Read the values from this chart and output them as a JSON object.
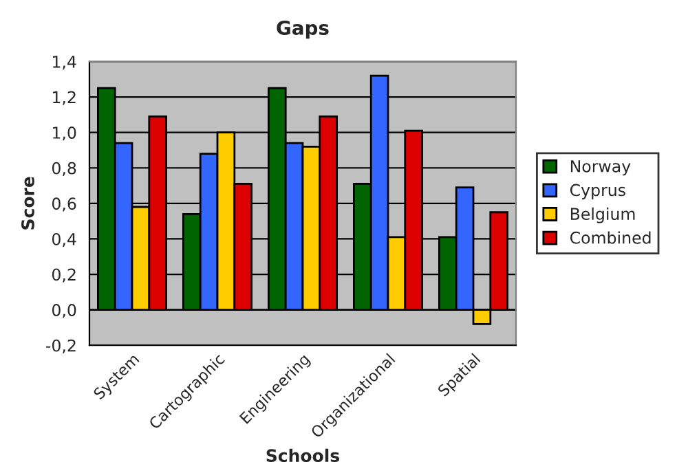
{
  "chart_data": {
    "type": "bar",
    "title": "Gaps",
    "xlabel": "Schools",
    "ylabel": "Score",
    "categories": [
      "System",
      "Cartographic",
      "Engineering",
      "Organizational",
      "Spatial"
    ],
    "series": [
      {
        "name": "Norway",
        "color": "#006400",
        "values": [
          1.25,
          0.54,
          1.25,
          0.71,
          0.41
        ]
      },
      {
        "name": "Cyprus",
        "color": "#3366ff",
        "values": [
          0.94,
          0.88,
          0.94,
          1.32,
          0.69
        ]
      },
      {
        "name": "Belgium",
        "color": "#ffcc00",
        "values": [
          0.58,
          1.0,
          0.92,
          0.41,
          -0.08
        ]
      },
      {
        "name": "Combined",
        "color": "#dd0000",
        "values": [
          1.09,
          0.71,
          1.09,
          1.01,
          0.55
        ]
      }
    ],
    "ylim": [
      -0.2,
      1.4
    ],
    "yticks": [
      {
        "value": -0.2,
        "label": "-0,2"
      },
      {
        "value": 0.0,
        "label": "0,0"
      },
      {
        "value": 0.2,
        "label": "0,2"
      },
      {
        "value": 0.4,
        "label": "0,4"
      },
      {
        "value": 0.6,
        "label": "0,6"
      },
      {
        "value": 0.8,
        "label": "0,8"
      },
      {
        "value": 1.0,
        "label": "1,0"
      },
      {
        "value": 1.2,
        "label": "1,2"
      },
      {
        "value": 1.4,
        "label": "1,4"
      }
    ],
    "grid": "y",
    "legend": "right"
  }
}
